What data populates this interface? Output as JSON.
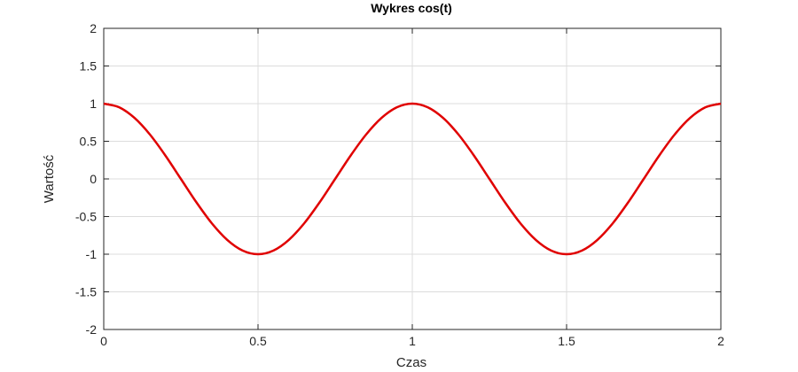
{
  "chart_data": {
    "type": "line",
    "title": "Wykres cos(t)",
    "xlabel": "Czas",
    "ylabel": "Wartość",
    "xlim": [
      0,
      2
    ],
    "ylim": [
      -2,
      2
    ],
    "xticks": [
      0,
      0.5,
      1,
      1.5,
      2
    ],
    "xtick_labels": [
      "0",
      "0.5",
      "1",
      "1.5",
      "2"
    ],
    "yticks": [
      -2,
      -1.5,
      -1,
      -0.5,
      0,
      0.5,
      1,
      1.5,
      2
    ],
    "ytick_labels": [
      "-2",
      "-1.5",
      "-1",
      "-0.5",
      "0",
      "0.5",
      "1",
      "1.5",
      "2"
    ],
    "grid": true,
    "series": [
      {
        "color": "#e00000",
        "x": [
          0,
          0.05,
          0.1,
          0.15,
          0.2,
          0.25,
          0.3,
          0.35,
          0.4,
          0.45,
          0.5,
          0.55,
          0.6,
          0.65,
          0.7,
          0.75,
          0.8,
          0.85,
          0.9,
          0.95,
          1,
          1.05,
          1.1,
          1.15,
          1.2,
          1.25,
          1.3,
          1.35,
          1.4,
          1.45,
          1.5,
          1.55,
          1.6,
          1.65,
          1.7,
          1.75,
          1.8,
          1.85,
          1.9,
          1.95,
          2
        ],
        "y": [
          1,
          0.951,
          0.809,
          0.588,
          0.309,
          0,
          -0.309,
          -0.588,
          -0.809,
          -0.951,
          -1,
          -0.951,
          -0.809,
          -0.588,
          -0.309,
          0,
          0.309,
          0.588,
          0.809,
          0.951,
          1,
          0.951,
          0.809,
          0.588,
          0.309,
          0,
          -0.309,
          -0.588,
          -0.809,
          -0.951,
          -1,
          -0.951,
          -0.809,
          -0.588,
          -0.309,
          0,
          0.309,
          0.588,
          0.809,
          0.951,
          1
        ]
      }
    ]
  }
}
